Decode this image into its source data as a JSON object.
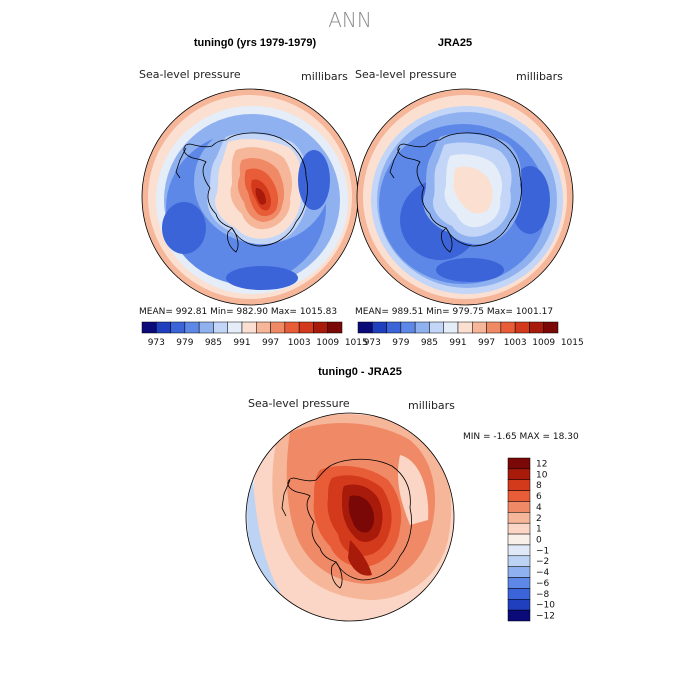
{
  "figure": {
    "title": "ANN",
    "colors": {
      "seq": [
        "#0a0a78",
        "#1f3fbf",
        "#3b64d8",
        "#5d88e8",
        "#8fb1f0",
        "#c3d6f7",
        "#e4edf8",
        "#fbe0d2",
        "#f6b69a",
        "#f08a66",
        "#e85c37",
        "#d33a1c",
        "#a81a0a",
        "#7a0806"
      ],
      "diff": [
        "#7a0806",
        "#a81a0a",
        "#d33a1c",
        "#e85c37",
        "#f08a66",
        "#f6b69a",
        "#fbd6c6",
        "#faf0ea",
        "#dfe9f8",
        "#bcd3f4",
        "#8fb1f0",
        "#5d88e8",
        "#3b64d8",
        "#1f3fbf",
        "#0a0a78"
      ]
    }
  },
  "chart_data": [
    {
      "type": "heatmap",
      "title": "tuning0 (yrs 1979-1979)",
      "variable": "Sea-level pressure",
      "units": "millibars",
      "projection": "south-polar-stereographic",
      "stats": {
        "mean": "992.81",
        "min": "982.90",
        "max": "1015.83"
      },
      "stats_text": "MEAN= 992.81   Min= 982.90   Max= 1015.83",
      "colorbar_levels": [
        973,
        976,
        979,
        982,
        985,
        988,
        991,
        994,
        997,
        1000,
        1003,
        1006,
        1009,
        1012,
        1015
      ],
      "colorbar_ticks": [
        "973",
        "979",
        "985",
        "991",
        "997",
        "1003",
        "1009",
        "1015"
      ]
    },
    {
      "type": "heatmap",
      "title": "JRA25",
      "variable": "Sea-level pressure",
      "units": "millibars",
      "projection": "south-polar-stereographic",
      "stats": {
        "mean": "989.51",
        "min": "979.75",
        "max": "1001.17"
      },
      "stats_text": "MEAN= 989.51   Min= 979.75   Max= 1001.17",
      "colorbar_levels": [
        973,
        976,
        979,
        982,
        985,
        988,
        991,
        994,
        997,
        1000,
        1003,
        1006,
        1009,
        1012,
        1015
      ],
      "colorbar_ticks": [
        "973",
        "979",
        "985",
        "991",
        "997",
        "1003",
        "1009",
        "1015"
      ]
    },
    {
      "type": "heatmap",
      "title": "tuning0 - JRA25",
      "variable": "Sea-level pressure",
      "units": "millibars",
      "projection": "south-polar-stereographic",
      "stats": {
        "min": "-1.65",
        "max": "18.30"
      },
      "stats_text": "MIN =   -1.65  MAX =   18.30",
      "colorbar_levels": [
        12,
        10,
        8,
        6,
        4,
        2,
        1,
        0,
        -1,
        -2,
        -4,
        -6,
        -8,
        -10,
        -12
      ],
      "colorbar_ticks": [
        "12",
        "10",
        "8",
        "6",
        "4",
        "2",
        "1",
        "0",
        "−1",
        "−2",
        "−4",
        "−6",
        "−8",
        "−10",
        "−12"
      ]
    }
  ]
}
